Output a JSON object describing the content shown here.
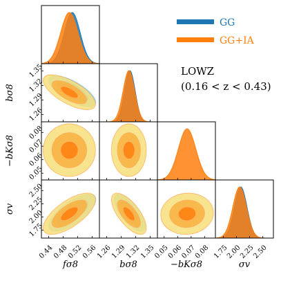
{
  "chart_data": {
    "type": "scatter",
    "plot_kind": "corner",
    "parameters": [
      {
        "key": "fs8",
        "label": "fσ8",
        "ticks": [
          "0.44",
          "0.48",
          "0.52",
          "0.56"
        ],
        "range": [
          0.42,
          0.58
        ]
      },
      {
        "key": "bs8",
        "label": "bσ8",
        "ticks": [
          "1.26",
          "1.29",
          "1.32",
          "1.35"
        ],
        "range": [
          1.245,
          1.365
        ]
      },
      {
        "key": "bKs8",
        "label": "−bKσ8",
        "ticks": [
          "0.05",
          "0.06",
          "0.07",
          "0.08"
        ],
        "range": [
          0.045,
          0.088
        ]
      },
      {
        "key": "sv",
        "label": "σv",
        "ticks": [
          "1.75",
          "2.00",
          "2.25",
          "2.50"
        ],
        "range": [
          1.6,
          2.7
        ]
      }
    ],
    "series": [
      {
        "name": "GG",
        "color": "#1f77b4",
        "contour_colors": [
          "#87ceeb",
          "#3f9fd6",
          "#1f77b4"
        ],
        "means": {
          "fs8": 0.505,
          "bs8": 1.308,
          "sv": 2.08
        },
        "sigmas": {
          "fs8": 0.022,
          "bs8": 0.011,
          "sv": 0.12
        },
        "correlations": {
          "fs8|bs8": -0.7,
          "fs8|sv": 0.7,
          "bs8|sv": -0.7
        }
      },
      {
        "name": "GG+IA",
        "color": "#ff7f0e",
        "contour_colors": [
          "#f7df7a",
          "#f8b040",
          "#ff7f0e"
        ],
        "means": {
          "fs8": 0.497,
          "bs8": 1.306,
          "bKs8": 0.067,
          "sv": 2.06
        },
        "sigmas": {
          "fs8": 0.024,
          "bs8": 0.012,
          "bKs8": 0.0065,
          "sv": 0.13
        },
        "correlations": {
          "fs8|bs8": -0.68,
          "fs8|sv": 0.68,
          "bs8|sv": -0.68,
          "fs8|bKs8": 0.0,
          "bs8|bKs8": 0.0,
          "bKs8|sv": 0.05
        }
      }
    ],
    "legend": {
      "position": "top-right",
      "entries": [
        "GG",
        "GG+IA"
      ]
    },
    "annotation": {
      "line1": "LOWZ",
      "line2": "(0.16 < z < 0.43)"
    }
  }
}
